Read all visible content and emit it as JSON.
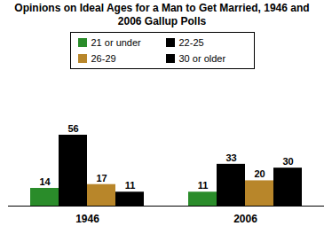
{
  "chart_data": {
    "type": "bar",
    "title": "Opinions on Ideal Ages for a Man to Get Married, 1946 and 2006 Gallup Polls",
    "categories": [
      "1946",
      "2006"
    ],
    "series": [
      {
        "name": "21 or under",
        "color": "#2a8c2a",
        "values": [
          14,
          11
        ]
      },
      {
        "name": "22-25",
        "color": "#000000",
        "values": [
          56,
          33
        ]
      },
      {
        "name": "26-29",
        "color": "#b8862a",
        "values": [
          17,
          20
        ]
      },
      {
        "name": "30 or older",
        "color": "#000000",
        "values": [
          11,
          30
        ]
      }
    ],
    "data_labels": true,
    "tick_labels": "x",
    "legend": "top"
  }
}
